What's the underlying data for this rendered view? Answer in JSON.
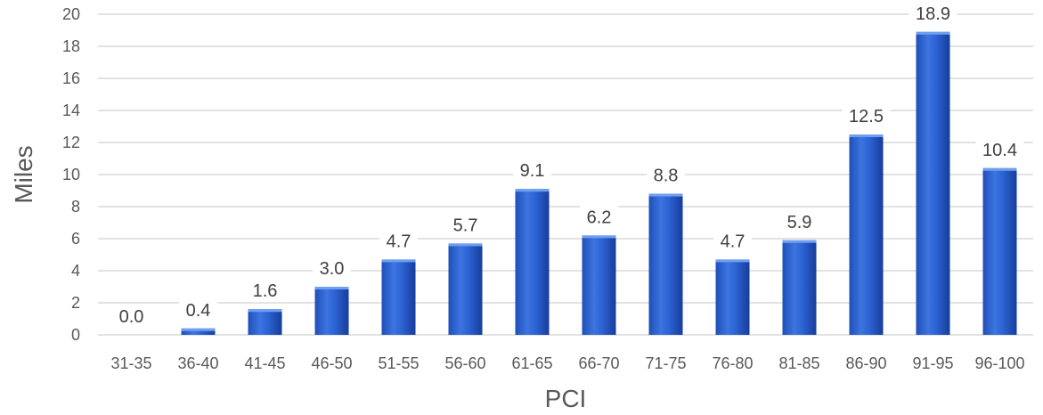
{
  "chart_data": {
    "type": "bar",
    "xlabel": "PCI",
    "ylabel": "Miles",
    "ylim": [
      0,
      20
    ],
    "yticks": [
      0,
      2,
      4,
      6,
      8,
      10,
      12,
      14,
      16,
      18,
      20
    ],
    "grid": true,
    "categories": [
      "31-35",
      "36-40",
      "41-45",
      "46-50",
      "51-55",
      "56-60",
      "61-65",
      "66-70",
      "71-75",
      "76-80",
      "81-85",
      "86-90",
      "91-95",
      "96-100"
    ],
    "values": [
      0.0,
      0.4,
      1.6,
      3.0,
      4.7,
      5.7,
      9.1,
      6.2,
      8.8,
      4.7,
      5.9,
      12.5,
      18.9,
      10.4
    ],
    "data_labels": [
      "0.0",
      "0.4",
      "1.6",
      "3.0",
      "4.7",
      "5.7",
      "9.1",
      "6.2",
      "8.8",
      "4.7",
      "5.9",
      "12.5",
      "18.9",
      "10.4"
    ],
    "colors": {
      "bar_light": "#4f86e8",
      "bar_mid": "#2a5fcf",
      "bar_dark": "#1d44a5",
      "bar_top": "#6f9ff0"
    }
  }
}
